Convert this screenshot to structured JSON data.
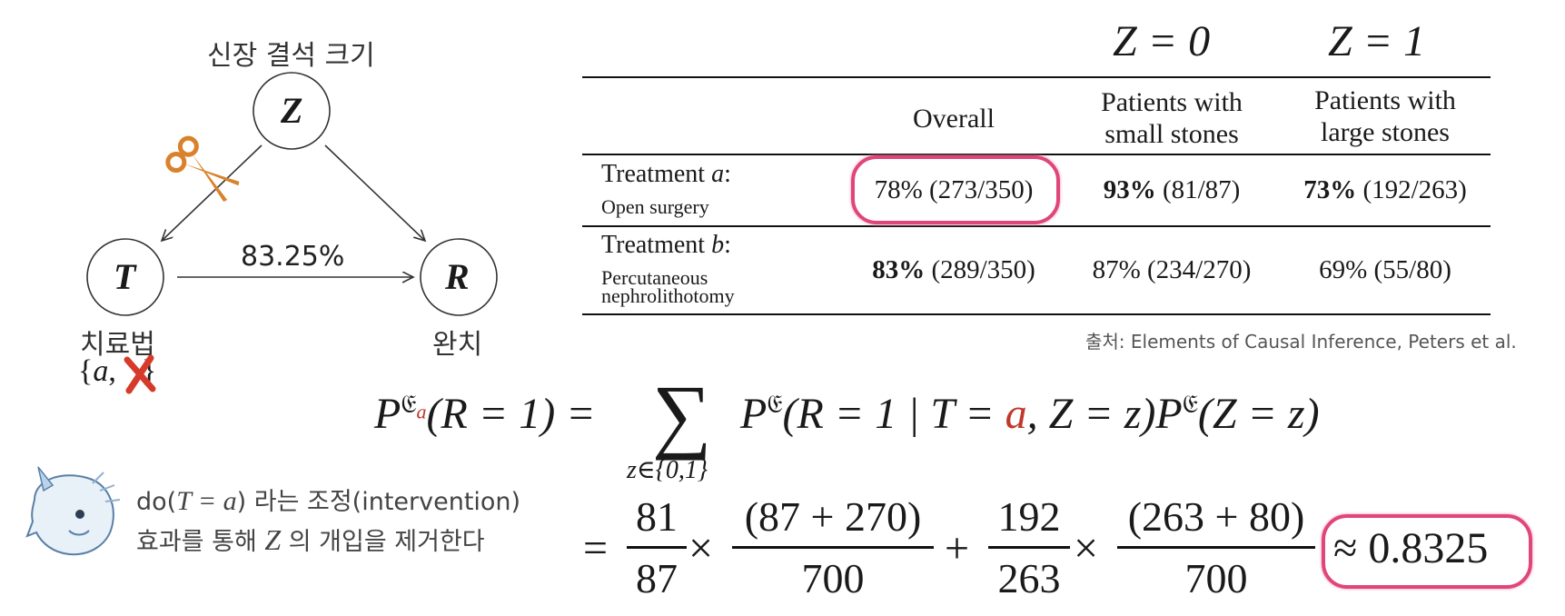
{
  "dag": {
    "z_title": "신장 결석 크기",
    "z_node": "Z",
    "t_node": "T",
    "r_node": "R",
    "edge_label": "83.25%",
    "t_caption": "치료법",
    "t_set_open": "{",
    "t_set_a": "a",
    "t_set_sep": ",",
    "t_set_close": "}",
    "r_caption": "완치"
  },
  "table": {
    "z0": "Z = 0",
    "z1": "Z = 1",
    "col_overall": "Overall",
    "col_small_1": "Patients with",
    "col_small_2": "small stones",
    "col_large_1": "Patients with",
    "col_large_2": "large stones",
    "row_a_label_prefix": "Treatment ",
    "row_a_label_var": "a",
    "row_a_label_suffix": ":",
    "row_a_sub": "Open surgery",
    "row_a_overall": "78% (273/350)",
    "row_a_small_bold": "93%",
    "row_a_small_rest": " (81/87)",
    "row_a_large_bold": "73%",
    "row_a_large_rest": " (192/263)",
    "row_b_label_prefix": "Treatment ",
    "row_b_label_var": "b",
    "row_b_label_suffix": ":",
    "row_b_sub_1": "Percutaneous",
    "row_b_sub_2": "nephrolithotomy",
    "row_b_overall_bold": "83%",
    "row_b_overall_rest": " (289/350)",
    "row_b_small": "87% (234/270)",
    "row_b_large": "69% (55/80)",
    "source": "출처: Elements of Causal Inference, Peters et al."
  },
  "formula": {
    "lhs": "(R = 1) = ",
    "sum_sub": "z∈{0,1}",
    "rhs_a": "(R = 1 | T = ",
    "rhs_a_var": "a",
    "rhs_b": ", Z = z)",
    "rhs_c": "(Z = z)",
    "p": "P",
    "frak": "𝔈",
    "sub_a": "a",
    "eq": "=",
    "n1": "81",
    "d1": "87",
    "n2": "(87 + 270)",
    "d2": "700",
    "n3": "192",
    "d3": "263",
    "n4": "(263 + 80)",
    "d4": "700",
    "times": "×",
    "plus": "+",
    "result": "≈ 0.8325"
  },
  "note": {
    "line1_do": "do(",
    "line1_expr": "T = a",
    "line1_close": ")",
    "line1_rest": " 라는 조정(intervention)",
    "line2_pre": "효과를 통해 ",
    "line2_z": "Z",
    "line2_rest": " 의 개입을 제거한다"
  },
  "colors": {
    "highlight": "#e0457b",
    "scissors": "#d9822b",
    "cross": "#d63a2a",
    "red_var": "#c0392b"
  }
}
